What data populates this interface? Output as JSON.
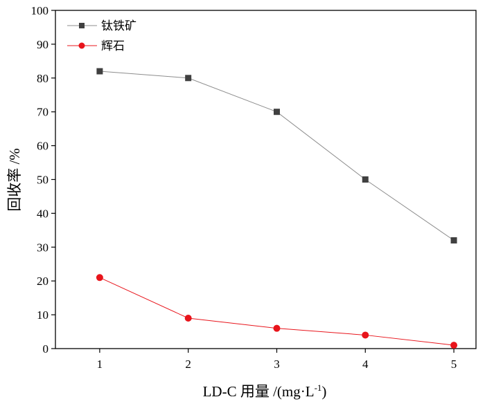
{
  "chart_data": {
    "type": "line",
    "title": "",
    "xlabel": "LD-C 用量 /(mg·L",
    "xlabel_sup": "-1",
    "xlabel_close": ")",
    "ylabel": "回收率 /%",
    "x": [
      1,
      2,
      3,
      4,
      5
    ],
    "xlim": [
      0.5,
      5.25
    ],
    "ylim": [
      0,
      100
    ],
    "xticks": [
      "1",
      "2",
      "3",
      "4",
      "5"
    ],
    "yticks": [
      "0",
      "10",
      "20",
      "30",
      "40",
      "50",
      "60",
      "70",
      "80",
      "90",
      "100"
    ],
    "legend_position": "top-left",
    "series": [
      {
        "name": "钛铁矿",
        "values": [
          82,
          80,
          70,
          50,
          32
        ],
        "color": "#404040",
        "line_color": "#8c8c8c",
        "marker": "square"
      },
      {
        "name": "辉石",
        "values": [
          21,
          9,
          6,
          4,
          1
        ],
        "color": "#e8141b",
        "line_color": "#e8141b",
        "marker": "circle"
      }
    ]
  }
}
